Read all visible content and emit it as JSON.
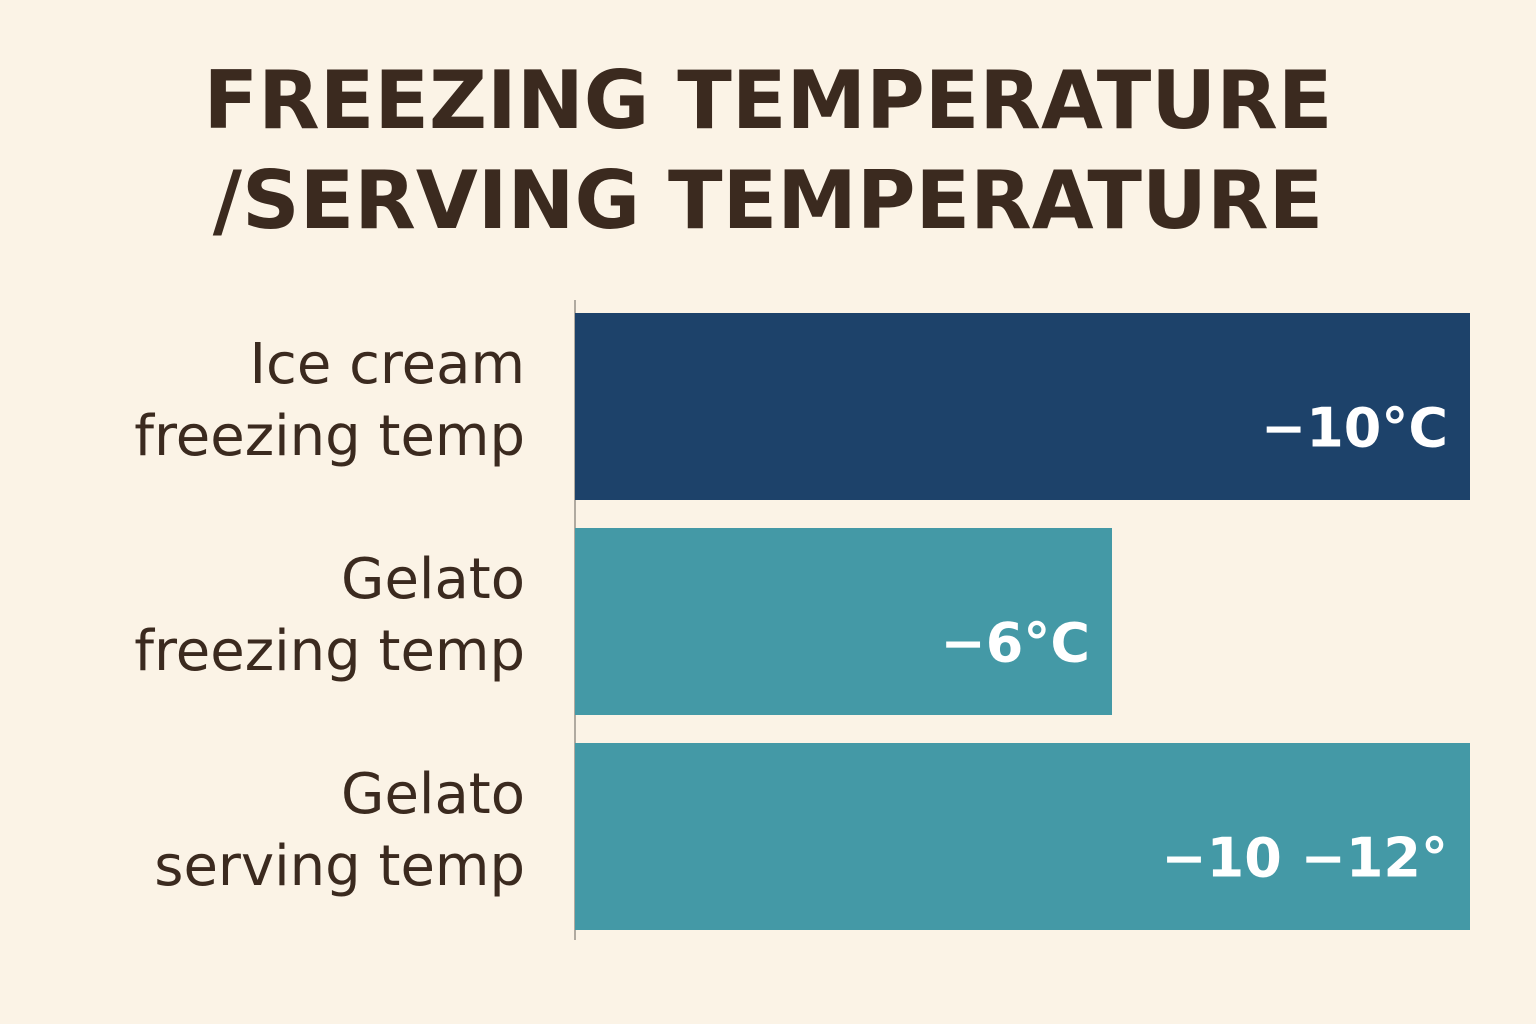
{
  "chart_data": {
    "type": "bar",
    "orientation": "horizontal",
    "title": [
      "FREEZING TEMPERATURE",
      "/SERVING TEMPERATURE"
    ],
    "categories": [
      [
        "Ice cream",
        "freezing temp"
      ],
      [
        "Gelato",
        "freezing temp"
      ],
      [
        "Gelato",
        "serving temp"
      ]
    ],
    "values": [
      -10,
      -6,
      -10
    ],
    "value_labels": [
      "−10°C",
      "−6°C",
      "−10 −12°"
    ],
    "colors": [
      "#1d426a",
      "#4499a6",
      "#4499a6"
    ]
  }
}
